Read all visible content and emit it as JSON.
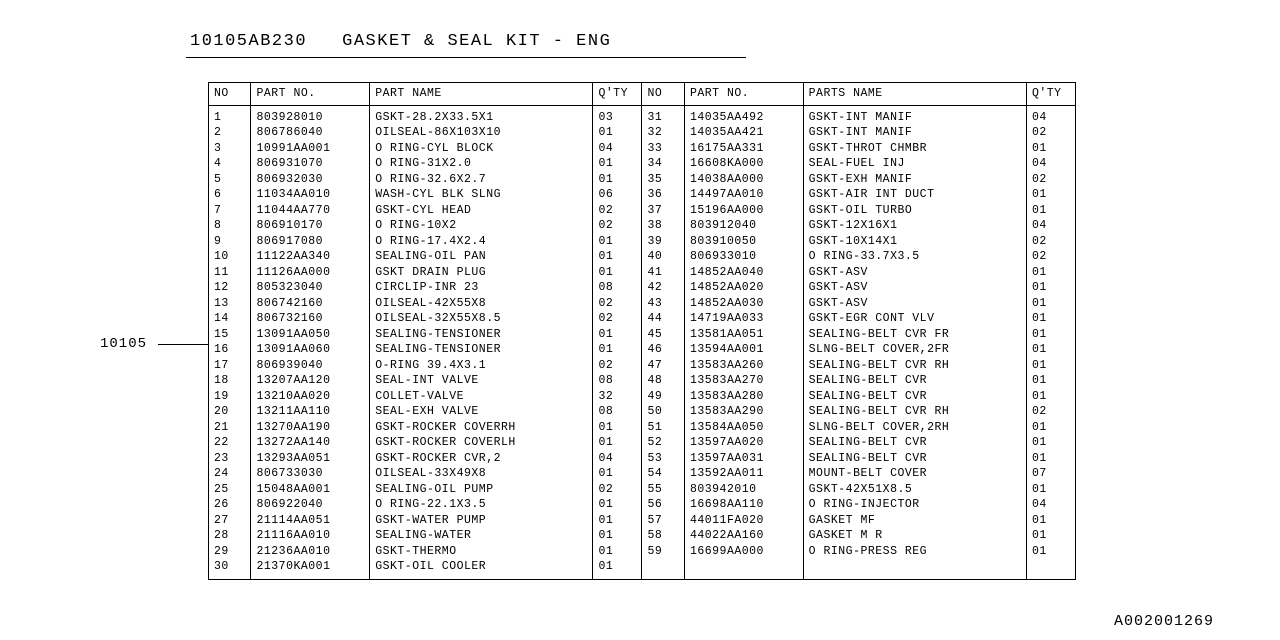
{
  "title_partno": "10105AB230",
  "title_name": "GASKET & SEAL KIT - ENG",
  "ref_label": "10105",
  "footer_id": "A002001269",
  "headers_left": {
    "no": "NO",
    "part": "PART NO.",
    "name": "PART NAME",
    "qty": "Q'TY"
  },
  "headers_right": {
    "no": "NO",
    "part": "PART NO.",
    "name": "PARTS NAME",
    "qty": "Q'TY"
  },
  "left": [
    {
      "no": "1",
      "part": "803928010",
      "name": "GSKT-28.2X33.5X1",
      "qty": "03"
    },
    {
      "no": "2",
      "part": "806786040",
      "name": "OILSEAL-86X103X10",
      "qty": "01"
    },
    {
      "no": "3",
      "part": "10991AA001",
      "name": "O RING-CYL BLOCK",
      "qty": "04"
    },
    {
      "no": "4",
      "part": "806931070",
      "name": "O RING-31X2.0",
      "qty": "01"
    },
    {
      "no": "5",
      "part": "806932030",
      "name": "O RING-32.6X2.7",
      "qty": "01"
    },
    {
      "no": "6",
      "part": "11034AA010",
      "name": "WASH-CYL BLK SLNG",
      "qty": "06"
    },
    {
      "no": "7",
      "part": "11044AA770",
      "name": "GSKT-CYL HEAD",
      "qty": "02"
    },
    {
      "no": "8",
      "part": "806910170",
      "name": "O RING-10X2",
      "qty": "02"
    },
    {
      "no": "9",
      "part": "806917080",
      "name": "O RING-17.4X2.4",
      "qty": "01"
    },
    {
      "no": "10",
      "part": "11122AA340",
      "name": "SEALING-OIL PAN",
      "qty": "01"
    },
    {
      "no": "11",
      "part": "11126AA000",
      "name": "GSKT DRAIN PLUG",
      "qty": "01"
    },
    {
      "no": "12",
      "part": "805323040",
      "name": "CIRCLIP-INR 23",
      "qty": "08"
    },
    {
      "no": "13",
      "part": "806742160",
      "name": "OILSEAL-42X55X8",
      "qty": "02"
    },
    {
      "no": "14",
      "part": "806732160",
      "name": "OILSEAL-32X55X8.5",
      "qty": "02"
    },
    {
      "no": "15",
      "part": "13091AA050",
      "name": "SEALING-TENSIONER",
      "qty": "01"
    },
    {
      "no": "16",
      "part": "13091AA060",
      "name": "SEALING-TENSIONER",
      "qty": "01"
    },
    {
      "no": "17",
      "part": "806939040",
      "name": "O-RING 39.4X3.1",
      "qty": "02"
    },
    {
      "no": "18",
      "part": "13207AA120",
      "name": "SEAL-INT VALVE",
      "qty": "08"
    },
    {
      "no": "19",
      "part": "13210AA020",
      "name": "COLLET-VALVE",
      "qty": "32"
    },
    {
      "no": "20",
      "part": "13211AA110",
      "name": "SEAL-EXH VALVE",
      "qty": "08"
    },
    {
      "no": "21",
      "part": "13270AA190",
      "name": "GSKT-ROCKER COVERRH",
      "qty": "01"
    },
    {
      "no": "22",
      "part": "13272AA140",
      "name": "GSKT-ROCKER COVERLH",
      "qty": "01"
    },
    {
      "no": "23",
      "part": "13293AA051",
      "name": "GSKT-ROCKER CVR,2",
      "qty": "04"
    },
    {
      "no": "24",
      "part": "806733030",
      "name": "OILSEAL-33X49X8",
      "qty": "01"
    },
    {
      "no": "25",
      "part": "15048AA001",
      "name": "SEALING-OIL PUMP",
      "qty": "02"
    },
    {
      "no": "26",
      "part": "806922040",
      "name": "O RING-22.1X3.5",
      "qty": "01"
    },
    {
      "no": "27",
      "part": "21114AA051",
      "name": "GSKT-WATER PUMP",
      "qty": "01"
    },
    {
      "no": "28",
      "part": "21116AA010",
      "name": "SEALING-WATER",
      "qty": "01"
    },
    {
      "no": "29",
      "part": "21236AA010",
      "name": "GSKT-THERMO",
      "qty": "01"
    },
    {
      "no": "30",
      "part": "21370KA001",
      "name": "GSKT-OIL COOLER",
      "qty": "01"
    }
  ],
  "right": [
    {
      "no": "31",
      "part": "14035AA492",
      "name": "GSKT-INT MANIF",
      "qty": "04"
    },
    {
      "no": "32",
      "part": "14035AA421",
      "name": "GSKT-INT MANIF",
      "qty": "02"
    },
    {
      "no": "33",
      "part": "16175AA331",
      "name": "GSKT-THROT CHMBR",
      "qty": "01"
    },
    {
      "no": "34",
      "part": "16608KA000",
      "name": "SEAL-FUEL INJ",
      "qty": "04"
    },
    {
      "no": "35",
      "part": "14038AA000",
      "name": "GSKT-EXH MANIF",
      "qty": "02"
    },
    {
      "no": "36",
      "part": "14497AA010",
      "name": "GSKT-AIR INT DUCT",
      "qty": "01"
    },
    {
      "no": "37",
      "part": "15196AA000",
      "name": "GSKT-OIL TURBO",
      "qty": "01"
    },
    {
      "no": "38",
      "part": "803912040",
      "name": "GSKT-12X16X1",
      "qty": "04"
    },
    {
      "no": "39",
      "part": "803910050",
      "name": "GSKT-10X14X1",
      "qty": "02"
    },
    {
      "no": "40",
      "part": "806933010",
      "name": "O RING-33.7X3.5",
      "qty": "02"
    },
    {
      "no": "41",
      "part": "14852AA040",
      "name": "GSKT-ASV",
      "qty": "01"
    },
    {
      "no": "42",
      "part": "14852AA020",
      "name": "GSKT-ASV",
      "qty": "01"
    },
    {
      "no": "43",
      "part": "14852AA030",
      "name": "GSKT-ASV",
      "qty": "01"
    },
    {
      "no": "44",
      "part": "14719AA033",
      "name": "GSKT-EGR CONT VLV",
      "qty": "01"
    },
    {
      "no": "45",
      "part": "13581AA051",
      "name": "SEALING-BELT CVR FR",
      "qty": "01"
    },
    {
      "no": "46",
      "part": "13594AA001",
      "name": "SLNG-BELT COVER,2FR",
      "qty": "01"
    },
    {
      "no": "47",
      "part": "13583AA260",
      "name": "SEALING-BELT CVR RH",
      "qty": "01"
    },
    {
      "no": "48",
      "part": "13583AA270",
      "name": "SEALING-BELT CVR",
      "qty": "01"
    },
    {
      "no": "49",
      "part": "13583AA280",
      "name": "SEALING-BELT CVR",
      "qty": "01"
    },
    {
      "no": "50",
      "part": "13583AA290",
      "name": "SEALING-BELT CVR RH",
      "qty": "02"
    },
    {
      "no": "51",
      "part": "13584AA050",
      "name": "SLNG-BELT COVER,2RH",
      "qty": "01"
    },
    {
      "no": "52",
      "part": "13597AA020",
      "name": "SEALING-BELT CVR",
      "qty": "01"
    },
    {
      "no": "53",
      "part": "13597AA031",
      "name": "SEALING-BELT CVR",
      "qty": "01"
    },
    {
      "no": "54",
      "part": "13592AA011",
      "name": "MOUNT-BELT COVER",
      "qty": "07"
    },
    {
      "no": "55",
      "part": "803942010",
      "name": "GSKT-42X51X8.5",
      "qty": "01"
    },
    {
      "no": "56",
      "part": "16698AA110",
      "name": "O RING-INJECTOR",
      "qty": "04"
    },
    {
      "no": "57",
      "part": "44011FA020",
      "name": "GASKET MF",
      "qty": "01"
    },
    {
      "no": "58",
      "part": "44022AA160",
      "name": "GASKET M R",
      "qty": "01"
    },
    {
      "no": "59",
      "part": "16699AA000",
      "name": "O RING-PRESS REG",
      "qty": "01"
    },
    {
      "no": "",
      "part": "",
      "name": "",
      "qty": ""
    }
  ]
}
